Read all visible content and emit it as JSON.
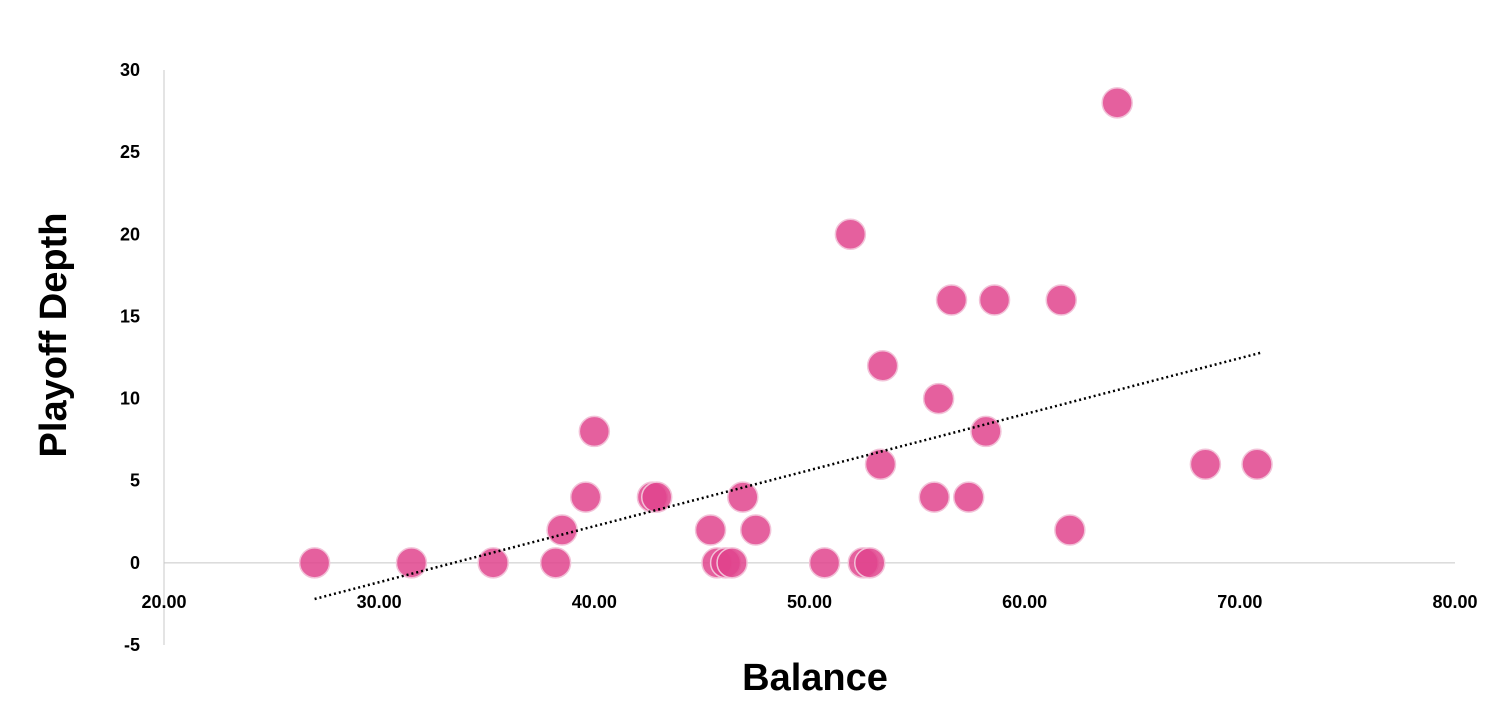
{
  "chart_data": {
    "type": "scatter",
    "title": "",
    "xlabel": "Balance",
    "ylabel": "Playoff Depth",
    "xlim": [
      20,
      80
    ],
    "ylim": [
      -5,
      30
    ],
    "x_ticks": [
      20,
      30,
      40,
      50,
      60,
      70,
      80
    ],
    "x_tick_labels": [
      "20.00",
      "30.00",
      "40.00",
      "50.00",
      "60.00",
      "70.00",
      "80.00"
    ],
    "y_ticks": [
      -5,
      0,
      5,
      10,
      15,
      20,
      25,
      30
    ],
    "y_tick_labels": [
      "-5",
      "0",
      "5",
      "10",
      "15",
      "20",
      "25",
      "30"
    ],
    "grid": false,
    "legend": "none",
    "marker_color": "#E0448D",
    "axis_color": "#C8C8C8",
    "trendline": {
      "type": "linear",
      "style": "dotted",
      "color": "#000000",
      "x": [
        27.0,
        71.0
      ],
      "y": [
        -2.2,
        12.8
      ]
    },
    "series": [
      {
        "points": [
          {
            "x": 27.0,
            "y": 0
          },
          {
            "x": 31.5,
            "y": 0
          },
          {
            "x": 35.3,
            "y": 0
          },
          {
            "x": 38.2,
            "y": 0
          },
          {
            "x": 38.5,
            "y": 2
          },
          {
            "x": 39.6,
            "y": 4
          },
          {
            "x": 40.0,
            "y": 8
          },
          {
            "x": 42.7,
            "y": 4
          },
          {
            "x": 42.9,
            "y": 4
          },
          {
            "x": 45.4,
            "y": 2
          },
          {
            "x": 45.7,
            "y": 0
          },
          {
            "x": 46.1,
            "y": 0
          },
          {
            "x": 46.4,
            "y": 0
          },
          {
            "x": 46.9,
            "y": 4
          },
          {
            "x": 47.5,
            "y": 2
          },
          {
            "x": 50.7,
            "y": 0
          },
          {
            "x": 51.9,
            "y": 20
          },
          {
            "x": 52.5,
            "y": 0
          },
          {
            "x": 52.8,
            "y": 0
          },
          {
            "x": 53.3,
            "y": 6
          },
          {
            "x": 53.4,
            "y": 12
          },
          {
            "x": 55.8,
            "y": 4
          },
          {
            "x": 56.0,
            "y": 10
          },
          {
            "x": 56.6,
            "y": 16
          },
          {
            "x": 57.4,
            "y": 4
          },
          {
            "x": 58.2,
            "y": 8
          },
          {
            "x": 58.6,
            "y": 16
          },
          {
            "x": 61.7,
            "y": 16
          },
          {
            "x": 62.1,
            "y": 2
          },
          {
            "x": 64.3,
            "y": 28
          },
          {
            "x": 68.4,
            "y": 6
          },
          {
            "x": 70.8,
            "y": 6
          }
        ]
      }
    ]
  }
}
